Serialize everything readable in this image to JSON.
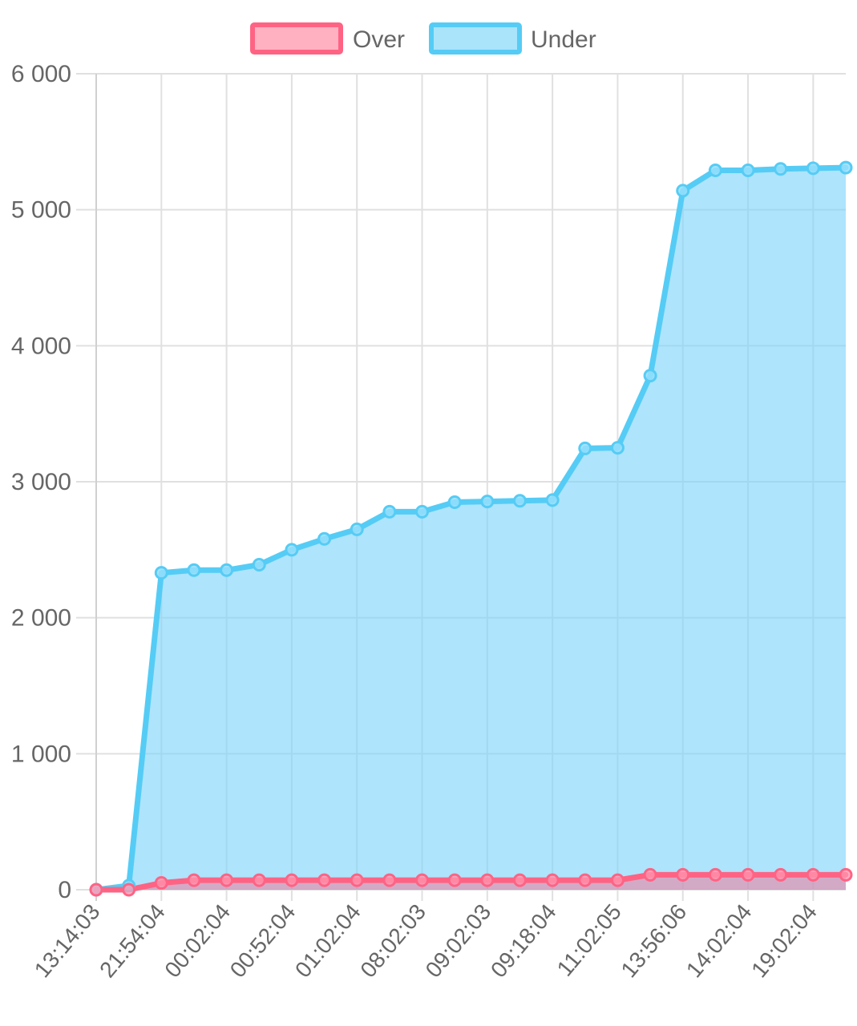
{
  "chart_data": {
    "type": "area",
    "grid": true,
    "legend_position": "top",
    "ylim": [
      0,
      6000
    ],
    "y_ticks": [
      "0",
      "1 000",
      "2 000",
      "3 000",
      "4 000",
      "5 000",
      "6 000"
    ],
    "x_tick_labels": [
      "13:14:03",
      "21:54:04",
      "00:02:04",
      "00:52:04",
      "01:02:04",
      "08:02:03",
      "09:02:03",
      "09:18:04",
      "11:02:05",
      "13:56:06",
      "14:02:04",
      "19:02:04"
    ],
    "series": [
      {
        "name": "Over",
        "line_color": "#ff6384",
        "fill_color": "rgba(255, 99, 132, 0.45)",
        "values": [
          0,
          0,
          50,
          70,
          70,
          70,
          70,
          70,
          70,
          70,
          70,
          70,
          70,
          70,
          70,
          70,
          70,
          110,
          110,
          110,
          110,
          110,
          110,
          110
        ]
      },
      {
        "name": "Under",
        "line_color": "#55ccf5",
        "fill_color": "rgba(125, 212, 250, 0.62)",
        "values": [
          0,
          30,
          2330,
          2350,
          2350,
          2390,
          2500,
          2580,
          2650,
          2780,
          2780,
          2850,
          2855,
          2860,
          2865,
          3245,
          3250,
          3780,
          5140,
          5290,
          5290,
          5300,
          5305,
          5310
        ]
      }
    ]
  }
}
